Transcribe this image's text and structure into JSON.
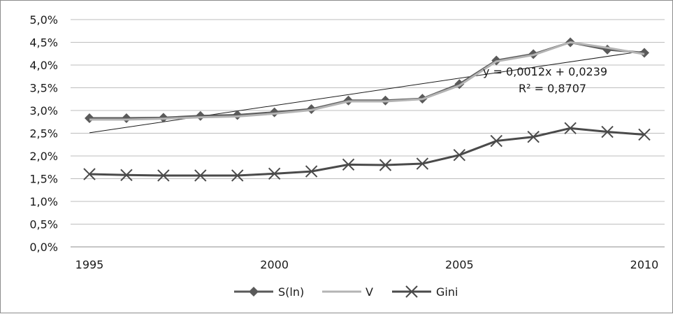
{
  "chart_data": {
    "type": "line",
    "x": [
      1995,
      1996,
      1997,
      1998,
      1999,
      2000,
      2001,
      2002,
      2003,
      2004,
      2005,
      2006,
      2007,
      2008,
      2009,
      2010
    ],
    "x_ticks": [
      "1995",
      "2000",
      "2005",
      "2010"
    ],
    "x_tick_values": [
      1995,
      2000,
      2005,
      2010
    ],
    "y_ticks": [
      "0,0%",
      "0,5%",
      "1,0%",
      "1,5%",
      "2,0%",
      "2,5%",
      "3,0%",
      "3,5%",
      "4,0%",
      "4,5%",
      "5,0%"
    ],
    "ylim": [
      0,
      0.05
    ],
    "grid": "horizontal",
    "legend_position": "bottom",
    "series": [
      {
        "name": "S(ln)",
        "color": "#5a5a5a",
        "marker": "diamond",
        "values": [
          0.0283,
          0.0283,
          0.0284,
          0.0288,
          0.029,
          0.0296,
          0.0303,
          0.0322,
          0.0322,
          0.0326,
          0.0358,
          0.041,
          0.0424,
          0.045,
          0.0434,
          0.0427
        ]
      },
      {
        "name": "V",
        "color": "#b4b4b4",
        "marker": "none",
        "values": [
          0.028,
          0.028,
          0.0282,
          0.0285,
          0.0287,
          0.0293,
          0.0301,
          0.032,
          0.032,
          0.0325,
          0.0355,
          0.0408,
          0.0422,
          0.045,
          0.0438,
          0.0424
        ]
      },
      {
        "name": "Gini",
        "color": "#4a4a4a",
        "marker": "x",
        "values": [
          0.016,
          0.0158,
          0.0157,
          0.0157,
          0.0157,
          0.0161,
          0.0166,
          0.0181,
          0.018,
          0.0183,
          0.0202,
          0.0233,
          0.0242,
          0.0261,
          0.0253,
          0.0247
        ]
      }
    ],
    "trendline": {
      "of_series": "S(ln)",
      "slope": 0.0012,
      "intercept": 0.0239,
      "color": "#1a1a1a",
      "equation_label": "y = 0,0012x + 0,0239",
      "r2_label": "R² = 0,8707"
    }
  }
}
